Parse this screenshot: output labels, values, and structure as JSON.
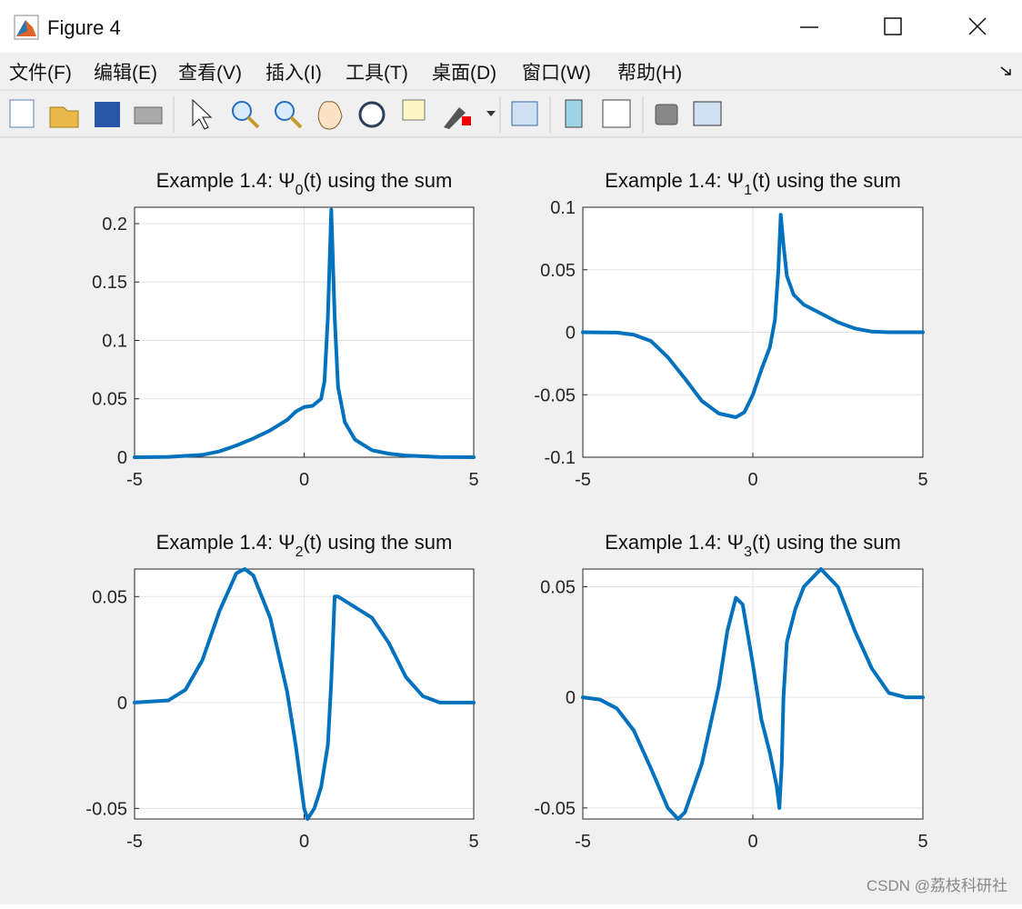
{
  "window": {
    "title": "Figure 4",
    "menu": [
      "文件(F)",
      "编辑(E)",
      "查看(V)",
      "插入(I)",
      "工具(T)",
      "桌面(D)",
      "窗口(W)",
      "帮助(H)"
    ],
    "watermark": "CSDN @荔枝科研社"
  },
  "chart_data": [
    {
      "type": "line",
      "title": [
        "Example 1.4: Ψ",
        "0",
        "(t) using the sum"
      ],
      "grid": true,
      "xlim": [
        -5,
        5
      ],
      "xticks": [
        -5,
        0,
        5
      ],
      "ylim": [
        0,
        0.214
      ],
      "yticks": [
        0,
        0.05,
        0.1,
        0.15,
        0.2
      ],
      "x": [
        -5,
        -4,
        -3,
        -2.5,
        -2,
        -1.5,
        -1,
        -0.5,
        -0.25,
        0,
        0.25,
        0.5,
        0.6,
        0.7,
        0.8,
        0.9,
        1.0,
        1.2,
        1.5,
        2,
        2.5,
        3,
        4,
        5
      ],
      "series": [
        {
          "color": "#0072bd",
          "values": [
            0,
            0.0003,
            0.002,
            0.005,
            0.01,
            0.016,
            0.023,
            0.032,
            0.039,
            0.043,
            0.044,
            0.05,
            0.065,
            0.12,
            0.212,
            0.12,
            0.06,
            0.03,
            0.015,
            0.006,
            0.003,
            0.0015,
            0.0002,
            0
          ]
        }
      ]
    },
    {
      "type": "line",
      "title": [
        "Example 1.4: Ψ",
        "1",
        "(t) using the sum"
      ],
      "grid": true,
      "xlim": [
        -5,
        5
      ],
      "xticks": [
        -5,
        0,
        5
      ],
      "ylim": [
        -0.1,
        0.1
      ],
      "yticks": [
        -0.1,
        -0.05,
        0,
        0.05,
        0.1
      ],
      "x": [
        -5,
        -4,
        -3.5,
        -3,
        -2.5,
        -2,
        -1.5,
        -1,
        -0.5,
        -0.25,
        0,
        0.25,
        0.5,
        0.65,
        0.75,
        0.82,
        0.9,
        1.0,
        1.2,
        1.5,
        2,
        2.5,
        3,
        3.5,
        4,
        5
      ],
      "series": [
        {
          "color": "#0072bd",
          "values": [
            0,
            -0.0003,
            -0.002,
            -0.007,
            -0.02,
            -0.037,
            -0.055,
            -0.065,
            -0.068,
            -0.064,
            -0.05,
            -0.03,
            -0.012,
            0.01,
            0.05,
            0.094,
            0.07,
            0.045,
            0.03,
            0.022,
            0.015,
            0.008,
            0.003,
            0.0005,
            0,
            0
          ]
        }
      ]
    },
    {
      "type": "line",
      "title": [
        "Example 1.4: Ψ",
        "2",
        "(t) using the sum"
      ],
      "grid": true,
      "xlim": [
        -5,
        5
      ],
      "xticks": [
        -5,
        0,
        5
      ],
      "ylim": [
        -0.055,
        0.063
      ],
      "yticks": [
        -0.05,
        0,
        0.05
      ],
      "x": [
        -5,
        -4,
        -3.5,
        -3,
        -2.5,
        -2,
        -1.75,
        -1.5,
        -1,
        -0.5,
        -0.25,
        0,
        0.1,
        0.3,
        0.5,
        0.7,
        0.8,
        0.9,
        1.0,
        1.5,
        2,
        2.5,
        3,
        3.5,
        4,
        5
      ],
      "series": [
        {
          "color": "#0072bd",
          "values": [
            0,
            0.001,
            0.006,
            0.02,
            0.043,
            0.061,
            0.063,
            0.06,
            0.04,
            0.005,
            -0.02,
            -0.05,
            -0.055,
            -0.05,
            -0.04,
            -0.02,
            0.01,
            0.05,
            0.05,
            0.045,
            0.04,
            0.028,
            0.012,
            0.003,
            0,
            0
          ]
        }
      ]
    },
    {
      "type": "line",
      "title": [
        "Example 1.4: Ψ",
        "3",
        "(t) using the sum"
      ],
      "grid": true,
      "xlim": [
        -5,
        5
      ],
      "xticks": [
        -5,
        0,
        5
      ],
      "ylim": [
        -0.055,
        0.058
      ],
      "yticks": [
        -0.05,
        0,
        0.05
      ],
      "x": [
        -5,
        -4.5,
        -4,
        -3.5,
        -3,
        -2.5,
        -2.2,
        -2,
        -1.5,
        -1,
        -0.75,
        -0.5,
        -0.3,
        0,
        0.25,
        0.5,
        0.7,
        0.78,
        0.85,
        0.9,
        1.0,
        1.25,
        1.5,
        2,
        2.5,
        3,
        3.5,
        4,
        4.5,
        5
      ],
      "series": [
        {
          "color": "#0072bd",
          "values": [
            0,
            -0.001,
            -0.005,
            -0.015,
            -0.032,
            -0.05,
            -0.055,
            -0.052,
            -0.03,
            0.005,
            0.03,
            0.045,
            0.042,
            0.015,
            -0.01,
            -0.025,
            -0.04,
            -0.05,
            -0.03,
            0,
            0.025,
            0.04,
            0.05,
            0.058,
            0.05,
            0.03,
            0.013,
            0.002,
            0,
            0
          ]
        }
      ]
    }
  ]
}
